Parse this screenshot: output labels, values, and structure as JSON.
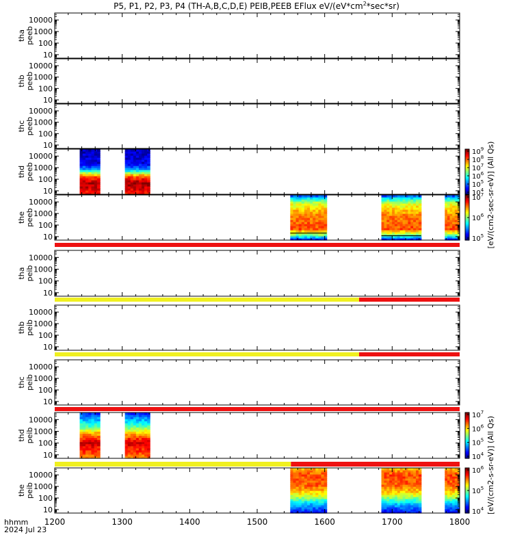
{
  "title": "P5, P1, P2, P3, P4 (TH-A,B,C,D,E) PEIB,PEEB EFlux eV/(eV*cm",
  "title_sup": "2",
  "title_tail": "*sec*sr)",
  "footer": {
    "hhmm": "hhmm",
    "date": "2024 Jul 23"
  },
  "colors": {
    "bar_red": "#ee1111",
    "bar_yellow": "#f0f020",
    "frame": "#000000"
  },
  "chart_data": {
    "type": "heatmap",
    "x_ticks": [
      "1200",
      "1300",
      "1400",
      "1500",
      "1600",
      "1700",
      "1800"
    ],
    "xlim": [
      1200,
      1800
    ],
    "y_scale": "log",
    "ylim": [
      5,
      40000
    ],
    "y_ticks": [
      "10",
      "100",
      "1000",
      "10000"
    ],
    "panels": [
      {
        "label1": "tha",
        "label2": "peeb",
        "blocks": []
      },
      {
        "label1": "thb",
        "label2": "peeb",
        "blocks": []
      },
      {
        "label1": "thc",
        "label2": "peeb",
        "blocks": []
      },
      {
        "label1": "thd",
        "label2": "peeb",
        "style": "e_thd",
        "blocks": [
          [
            1237,
            1267
          ],
          [
            1304,
            1341
          ]
        ]
      },
      {
        "label1": "the",
        "label2": "peeb",
        "style": "e_the",
        "blocks": [
          [
            1549,
            1603
          ],
          [
            1684,
            1743
          ],
          [
            1778,
            1800
          ]
        ],
        "bar": [
          {
            "from": 1200,
            "to": 1800,
            "color": "red"
          }
        ]
      },
      {
        "label1": "tha",
        "label2": "peib",
        "blocks": [],
        "bar": [
          {
            "from": 1200,
            "to": 1651,
            "color": "yellow"
          },
          {
            "from": 1651,
            "to": 1800,
            "color": "red"
          }
        ]
      },
      {
        "label1": "thb",
        "label2": "peib",
        "blocks": [],
        "bar": [
          {
            "from": 1200,
            "to": 1651,
            "color": "yellow"
          },
          {
            "from": 1651,
            "to": 1800,
            "color": "red"
          }
        ]
      },
      {
        "label1": "thc",
        "label2": "peib",
        "blocks": [],
        "bar": [
          {
            "from": 1200,
            "to": 1800,
            "color": "red"
          }
        ]
      },
      {
        "label1": "thd",
        "label2": "peib",
        "style": "i_thd",
        "blocks": [
          [
            1237,
            1267
          ],
          [
            1304,
            1341
          ]
        ],
        "bar": [
          {
            "from": 1200,
            "to": 1550,
            "color": "yellow"
          },
          {
            "from": 1550,
            "to": 1800,
            "color": "red"
          }
        ]
      },
      {
        "label1": "the",
        "label2": "peib",
        "style": "i_the",
        "blocks": [
          [
            1549,
            1603
          ],
          [
            1684,
            1743
          ],
          [
            1778,
            1800
          ]
        ]
      }
    ],
    "colorbars": [
      {
        "label": "[eV/(cm2-sec-sr-eV)] (All Qs)",
        "segments": [
          {
            "ticks": [
              [
                "10",
                "9"
              ],
              [
                "10",
                "8"
              ],
              [
                "10",
                "7"
              ],
              [
                "10",
                "6"
              ],
              [
                "10",
                "5"
              ],
              [
                "10",
                "4"
              ]
            ]
          },
          {
            "ticks": [
              [
                "10",
                "7"
              ],
              [
                "10",
                "6"
              ],
              [
                "10",
                "5"
              ]
            ]
          }
        ]
      },
      {
        "label": "[eV/(cm2-s-sr-eV)] (All Qs)",
        "segments": [
          {
            "ticks": [
              [
                "10",
                "7"
              ],
              [
                "10",
                "6"
              ],
              [
                "10",
                "5"
              ],
              [
                "10",
                "4"
              ]
            ]
          },
          {
            "ticks": [
              [
                "10",
                "6"
              ],
              [
                "10",
                "5"
              ],
              [
                "10",
                "4"
              ]
            ]
          }
        ]
      }
    ]
  }
}
